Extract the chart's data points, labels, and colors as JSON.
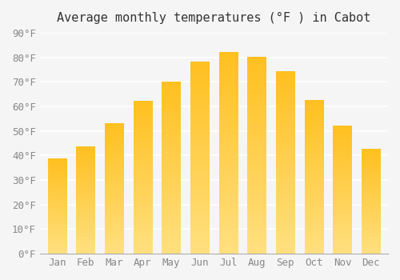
{
  "title": "Average monthly temperatures (°F ) in Cabot",
  "months": [
    "Jan",
    "Feb",
    "Mar",
    "Apr",
    "May",
    "Jun",
    "Jul",
    "Aug",
    "Sep",
    "Oct",
    "Nov",
    "Dec"
  ],
  "values": [
    38.5,
    43.5,
    53,
    62,
    70,
    78,
    82,
    80,
    74,
    62.5,
    52,
    42.5
  ],
  "bar_color_top": "#FFC020",
  "bar_color_bottom": "#FFD070",
  "ylim": [
    0,
    90
  ],
  "yticks": [
    0,
    10,
    20,
    30,
    40,
    50,
    60,
    70,
    80,
    90
  ],
  "ytick_labels": [
    "0°F",
    "10°F",
    "20°F",
    "30°F",
    "40°F",
    "50°F",
    "60°F",
    "70°F",
    "80°F",
    "90°F"
  ],
  "bg_color": "#f5f5f5",
  "grid_color": "#ffffff",
  "title_fontsize": 11,
  "tick_fontsize": 9,
  "font_family": "monospace"
}
